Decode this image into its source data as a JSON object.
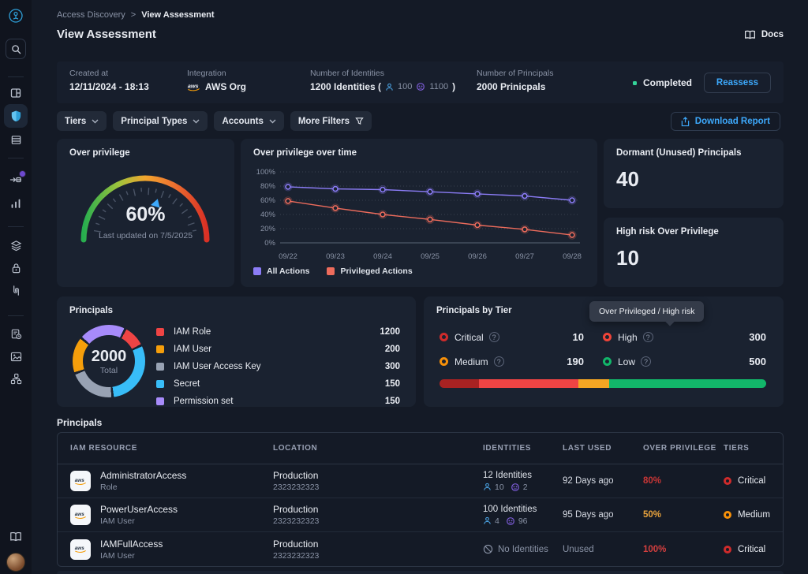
{
  "breadcrumb": {
    "items": [
      "Access Discovery",
      "View Assessment"
    ],
    "separator": ">"
  },
  "header": {
    "title": "View Assessment",
    "docs_label": "Docs"
  },
  "summary": {
    "created_label": "Created at",
    "created_value": "12/11/2024 - 18:13",
    "integration_label": "Integration",
    "integration_value": "AWS Org",
    "identities_label": "Number of Identities",
    "identities_prefix": "1200 Identities (",
    "identities_human": "100",
    "identities_machine": "1100",
    "identities_suffix": ")",
    "principals_label": "Number of Principals",
    "principals_value": "2000 Prinicpals",
    "status": "Completed",
    "status_color": "#34d399",
    "reassess_label": "Reassess"
  },
  "filters": {
    "tiers": "Tiers",
    "principal_types": "Principal Types",
    "accounts": "Accounts",
    "more_filters": "More Filters",
    "download_report": "Download Report"
  },
  "gauge_card": {
    "title": "Over privilege",
    "value": "60%",
    "percent": 60,
    "subtitle": "Last updated on 7/5/2025",
    "pointer_color": "#3da9fc"
  },
  "chart_data": {
    "type": "line",
    "title": "Over privilege over time",
    "x": [
      "09/22",
      "09/23",
      "09/24",
      "09/25",
      "09/26",
      "09/27",
      "09/28"
    ],
    "series": [
      {
        "name": "All Actions",
        "color": "#8b7cf6",
        "values": [
          79,
          76,
          75,
          72,
          69,
          66,
          60
        ]
      },
      {
        "name": "Privileged Actions",
        "color": "#ee6c5c",
        "values": [
          59,
          49,
          40,
          33,
          25,
          19,
          11
        ]
      }
    ],
    "ylim": [
      0,
      100
    ],
    "yticks": [
      0,
      20,
      40,
      60,
      80,
      100
    ],
    "ytick_suffix": "%",
    "grid": "dotted-horizontal",
    "legend_position": "bottom-left"
  },
  "stat_cards": [
    {
      "title": "Dormant (Unused) Principals",
      "value": "40"
    },
    {
      "title": "High risk Over Privilege",
      "value": "10"
    }
  ],
  "principals_card": {
    "title": "Principals",
    "total": "2000",
    "total_label": "Total",
    "legend": [
      {
        "label": "IAM Role",
        "value": "1200",
        "color": "#ef4444"
      },
      {
        "label": "IAM User",
        "value": "200",
        "color": "#f59e0b"
      },
      {
        "label": "IAM User Access Key",
        "value": "300",
        "color": "#98a2b3"
      },
      {
        "label": "Secret",
        "value": "150",
        "color": "#38bdf8"
      },
      {
        "label": "Permission set",
        "value": "150",
        "color": "#a78bfa"
      }
    ],
    "donut": {
      "start": -48,
      "gap": 4,
      "segments": [
        {
          "color": "#a78bfa",
          "deg": 73
        },
        {
          "color": "#ef4444",
          "deg": 33
        },
        {
          "color": "#38bdf8",
          "deg": 106
        },
        {
          "color": "#98a2b3",
          "deg": 72
        },
        {
          "color": "#f59e0b",
          "deg": 56
        }
      ]
    }
  },
  "tier_card": {
    "title": "Principals by Tier",
    "tooltip": "Over Privileged  / High risk",
    "tiers": [
      {
        "label": "Critical",
        "value": "10",
        "color": "#cf2b2b"
      },
      {
        "label": "High",
        "value": "300",
        "color": "#f04438"
      },
      {
        "label": "Medium",
        "value": "190",
        "color": "#f79009"
      },
      {
        "label": "Low",
        "value": "500",
        "color": "#12b76a"
      }
    ],
    "bar": [
      {
        "color": "#a82222",
        "pct": 12
      },
      {
        "color": "#ef4444",
        "pct": 30.5
      },
      {
        "color": "#f5a623",
        "pct": 9.5
      },
      {
        "color": "#12b76a",
        "pct": 48
      }
    ]
  },
  "table": {
    "section_title": "Principals",
    "headers": [
      "IAM RESOURCE",
      "LOCATION",
      "IDENTITIES",
      "LAST USED",
      "OVER PRIVILEGE",
      "TIERS"
    ],
    "rows": [
      {
        "name": "AdministratorAccess",
        "type": "Role",
        "location": "Production",
        "account": "2323232323",
        "identities": "12 Identities",
        "human": "10",
        "machine": "2",
        "last_used": "92 Days ago",
        "over_privilege": "80%",
        "over_privilege_color": "#c93636",
        "tier": "Critical",
        "tier_color": "#cf2b2b"
      },
      {
        "name": "PowerUserAccess",
        "type": "IAM User",
        "location": "Production",
        "account": "2323232323",
        "identities": "100 Identities",
        "human": "4",
        "machine": "96",
        "last_used": "95 Days ago",
        "over_privilege": "50%",
        "over_privilege_color": "#e8a33d",
        "tier": "Medium",
        "tier_color": "#f79009"
      },
      {
        "name": "IAMFullAccess",
        "type": "IAM User",
        "location": "Production",
        "account": "2323232323",
        "identities": "No Identities",
        "human": null,
        "machine": null,
        "last_used": "Unused",
        "over_privilege": "100%",
        "over_privilege_color": "#d43f3f",
        "tier": "Critical",
        "tier_color": "#cf2b2b"
      }
    ]
  },
  "icons": {
    "logo": "brand-circle",
    "search": "magnifier",
    "dashboard": "panel-grid",
    "shield": "shield",
    "list": "rows",
    "flow": "pipeline",
    "analytics": "bar-chart",
    "layers": "stacked-layers",
    "lock": "padlock",
    "integrations": "paired-hooks",
    "report": "doc-clock",
    "gallery": "image-card",
    "network": "node-tree",
    "book": "open-book",
    "human": "person",
    "machine": "robot",
    "no_identities": "circle-slash",
    "download": "share-up-arrow",
    "funnel": "filter-funnel",
    "chevron": "chevron-down"
  }
}
